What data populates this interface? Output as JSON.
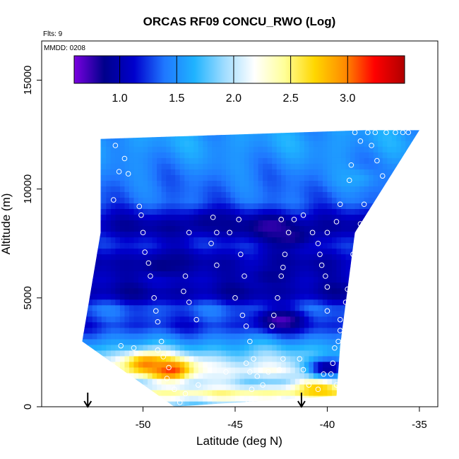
{
  "chart_data": {
    "type": "heatmap",
    "title": "ORCAS RF09 CONCU_RWO (Log)",
    "flights_label": "Flts: 9",
    "date_label": "MMDD: 0208",
    "xlabel": "Latitude (deg N)",
    "ylabel": "Altitude (m)",
    "xlim": [
      -55.5,
      -34
    ],
    "ylim": [
      0,
      16800
    ],
    "x_ticks": [
      -50,
      -45,
      -40,
      -35
    ],
    "x_tick_labels": [
      "-50",
      "-45",
      "-40",
      "-35"
    ],
    "y_ticks": [
      0,
      5000,
      10000,
      15000
    ],
    "y_tick_labels": [
      "0",
      "5000",
      "10000",
      "15000"
    ],
    "colorbar": {
      "range": [
        0.6,
        3.5
      ],
      "ticks": [
        1.0,
        1.5,
        2.0,
        2.5,
        3.0
      ],
      "tick_labels": [
        "1.0",
        "1.5",
        "2.0",
        "2.5",
        "3.0"
      ],
      "colors": [
        "#7a00e0",
        "#00008b",
        "#0000cd",
        "#1f77ff",
        "#1fb3ff",
        "#9fdcff",
        "#ffffff",
        "#ffff99",
        "#ffd700",
        "#ff8c00",
        "#ff0000",
        "#b00000"
      ]
    },
    "markers_x": [
      -53.0,
      -41.4
    ],
    "domain_polygon": [
      [
        -52.3,
        12300
      ],
      [
        -38.0,
        12700
      ],
      [
        -35.0,
        12700
      ],
      [
        -38.5,
        8000
      ],
      [
        -39.3,
        2800
      ],
      [
        -39.5,
        500
      ],
      [
        -48.3,
        0
      ],
      [
        -53.3,
        3000
      ],
      [
        -52.3,
        8000
      ]
    ],
    "bands": [
      {
        "alt": 12000,
        "val": 1.55
      },
      {
        "alt": 10500,
        "val": 1.4
      },
      {
        "alt": 9400,
        "val": 1.35
      },
      {
        "alt": 8300,
        "val": 0.95
      },
      {
        "alt": 7500,
        "val": 1.2
      },
      {
        "alt": 6700,
        "val": 1.0
      },
      {
        "alt": 5900,
        "val": 1.1
      },
      {
        "alt": 5200,
        "val": 0.95
      },
      {
        "alt": 4500,
        "val": 1.35
      },
      {
        "alt": 3700,
        "val": 1.2
      },
      {
        "alt": 2900,
        "val": 1.6
      },
      {
        "alt": 2300,
        "val": 1.9
      },
      {
        "alt": 1700,
        "val": 2.2
      },
      {
        "alt": 1100,
        "val": 1.8
      },
      {
        "alt": 600,
        "val": 2.5
      },
      {
        "alt": 200,
        "val": 1.9
      }
    ],
    "blobs": [
      {
        "x": -46.5,
        "alt": 8500,
        "val": 0.9
      },
      {
        "x": -43.0,
        "alt": 8300,
        "val": 0.75
      },
      {
        "x": -42.0,
        "alt": 7800,
        "val": 0.8
      },
      {
        "x": -49.0,
        "alt": 6500,
        "val": 0.85
      },
      {
        "x": -43.0,
        "alt": 6000,
        "val": 0.9
      },
      {
        "x": -42.5,
        "alt": 4000,
        "val": 0.7
      },
      {
        "x": -48.5,
        "alt": 1700,
        "val": 3.2
      },
      {
        "x": -49.8,
        "alt": 2000,
        "val": 3.0
      },
      {
        "x": -40.5,
        "alt": 900,
        "val": 2.8
      },
      {
        "x": -40.0,
        "alt": 1800,
        "val": 0.9
      },
      {
        "x": -46.0,
        "alt": 1400,
        "val": 2.1
      },
      {
        "x": -38.5,
        "alt": 10500,
        "val": 1.6
      }
    ],
    "points": [
      {
        "x": -51.5,
        "y": 12000
      },
      {
        "x": -51.0,
        "y": 11400
      },
      {
        "x": -51.3,
        "y": 10800
      },
      {
        "x": -50.8,
        "y": 10700
      },
      {
        "x": -51.6,
        "y": 9500
      },
      {
        "x": -50.2,
        "y": 9200
      },
      {
        "x": -50.1,
        "y": 8800
      },
      {
        "x": -50.0,
        "y": 8000
      },
      {
        "x": -52.7,
        "y": 8000
      },
      {
        "x": -52.9,
        "y": 7100
      },
      {
        "x": -49.9,
        "y": 7100
      },
      {
        "x": -49.7,
        "y": 6600
      },
      {
        "x": -49.6,
        "y": 6000
      },
      {
        "x": -53.0,
        "y": 6000
      },
      {
        "x": -53.2,
        "y": 5500
      },
      {
        "x": -49.4,
        "y": 5000
      },
      {
        "x": -49.3,
        "y": 4400
      },
      {
        "x": -49.2,
        "y": 3900
      },
      {
        "x": -53.5,
        "y": 4000
      },
      {
        "x": -49.0,
        "y": 3000
      },
      {
        "x": -46.2,
        "y": 8700
      },
      {
        "x": -46.0,
        "y": 8000
      },
      {
        "x": -47.5,
        "y": 8000
      },
      {
        "x": -46.3,
        "y": 7500
      },
      {
        "x": -46.0,
        "y": 6500
      },
      {
        "x": -44.8,
        "y": 8600
      },
      {
        "x": -45.3,
        "y": 8000
      },
      {
        "x": -44.7,
        "y": 7000
      },
      {
        "x": -44.5,
        "y": 6000
      },
      {
        "x": -45.0,
        "y": 5000
      },
      {
        "x": -47.7,
        "y": 6000
      },
      {
        "x": -47.8,
        "y": 5300
      },
      {
        "x": -47.5,
        "y": 4800
      },
      {
        "x": -47.1,
        "y": 4000
      },
      {
        "x": -44.6,
        "y": 4200
      },
      {
        "x": -44.4,
        "y": 3700
      },
      {
        "x": -44.2,
        "y": 3000
      },
      {
        "x": -42.5,
        "y": 8600
      },
      {
        "x": -41.8,
        "y": 8600
      },
      {
        "x": -42.1,
        "y": 8000
      },
      {
        "x": -42.3,
        "y": 7000
      },
      {
        "x": -42.4,
        "y": 6400
      },
      {
        "x": -42.5,
        "y": 6000
      },
      {
        "x": -42.7,
        "y": 5000
      },
      {
        "x": -42.9,
        "y": 4200
      },
      {
        "x": -43.0,
        "y": 3700
      },
      {
        "x": -41.3,
        "y": 8800
      },
      {
        "x": -40.8,
        "y": 8000
      },
      {
        "x": -40.5,
        "y": 7500
      },
      {
        "x": -40.4,
        "y": 7000
      },
      {
        "x": -40.3,
        "y": 6500
      },
      {
        "x": -40.1,
        "y": 6000
      },
      {
        "x": -40.0,
        "y": 5500
      },
      {
        "x": -40.0,
        "y": 4400
      },
      {
        "x": -39.5,
        "y": 8500
      },
      {
        "x": -40.0,
        "y": 8000
      },
      {
        "x": -39.3,
        "y": 9300
      },
      {
        "x": -38.8,
        "y": 10400
      },
      {
        "x": -38.7,
        "y": 11100
      },
      {
        "x": -38.2,
        "y": 12200
      },
      {
        "x": -38.5,
        "y": 12600
      },
      {
        "x": -37.8,
        "y": 12600
      },
      {
        "x": -37.4,
        "y": 12600
      },
      {
        "x": -36.8,
        "y": 12600
      },
      {
        "x": -36.3,
        "y": 12600
      },
      {
        "x": -35.9,
        "y": 12600
      },
      {
        "x": -35.6,
        "y": 12600
      },
      {
        "x": -37.6,
        "y": 12000
      },
      {
        "x": -37.3,
        "y": 11300
      },
      {
        "x": -37.0,
        "y": 10600
      },
      {
        "x": -38.0,
        "y": 9300
      },
      {
        "x": -38.2,
        "y": 8400
      },
      {
        "x": -38.3,
        "y": 8000
      },
      {
        "x": -38.6,
        "y": 7000
      },
      {
        "x": -38.6,
        "y": 6000
      },
      {
        "x": -38.7,
        "y": 5700
      },
      {
        "x": -38.9,
        "y": 5400
      },
      {
        "x": -39.0,
        "y": 4800
      },
      {
        "x": -39.3,
        "y": 4000
      },
      {
        "x": -39.3,
        "y": 3500
      },
      {
        "x": -39.4,
        "y": 3000
      },
      {
        "x": -39.6,
        "y": 2700
      },
      {
        "x": -39.7,
        "y": 2000
      },
      {
        "x": -39.8,
        "y": 1500
      },
      {
        "x": -39.5,
        "y": 1000
      },
      {
        "x": -40.2,
        "y": 1500
      },
      {
        "x": -40.5,
        "y": 800
      },
      {
        "x": -41.0,
        "y": 1000
      },
      {
        "x": -41.3,
        "y": 1700
      },
      {
        "x": -41.5,
        "y": 2200
      },
      {
        "x": -42.4,
        "y": 2200
      },
      {
        "x": -42.6,
        "y": 1700
      },
      {
        "x": -43.2,
        "y": 1600
      },
      {
        "x": -43.5,
        "y": 1000
      },
      {
        "x": -43.8,
        "y": 1400
      },
      {
        "x": -44.1,
        "y": 800
      },
      {
        "x": -44.3,
        "y": 300
      },
      {
        "x": -44.4,
        "y": 2000
      },
      {
        "x": -44.2,
        "y": 1600
      },
      {
        "x": -44.0,
        "y": 2200
      },
      {
        "x": -45.5,
        "y": 1600
      },
      {
        "x": -47.0,
        "y": 1000
      },
      {
        "x": -47.7,
        "y": 600
      },
      {
        "x": -48.0,
        "y": 200
      },
      {
        "x": -48.3,
        "y": 800
      },
      {
        "x": -48.7,
        "y": 1300
      },
      {
        "x": -48.6,
        "y": 1800
      },
      {
        "x": -48.9,
        "y": 2300
      },
      {
        "x": -49.2,
        "y": 2600
      },
      {
        "x": -50.5,
        "y": 2700
      },
      {
        "x": -51.2,
        "y": 2800
      }
    ]
  }
}
